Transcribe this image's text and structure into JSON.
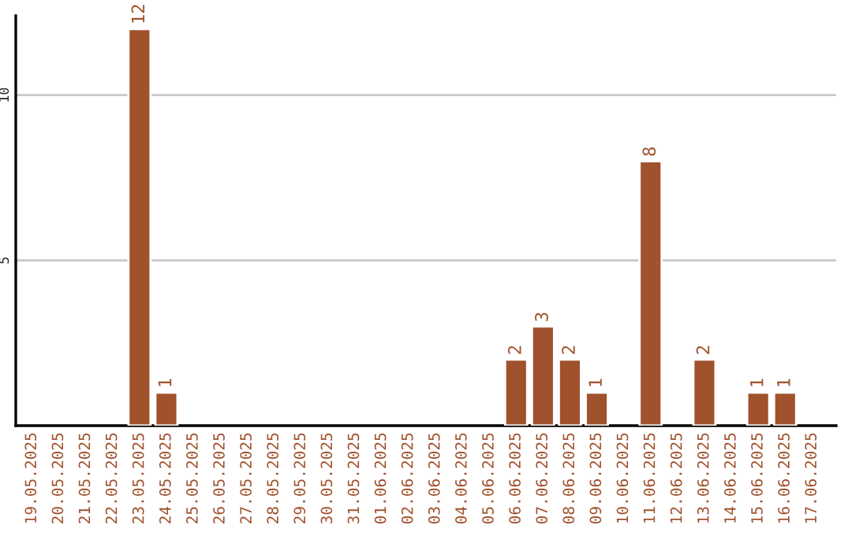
{
  "chart_data": {
    "type": "bar",
    "categories": [
      "19.05.2025",
      "20.05.2025",
      "21.05.2025",
      "22.05.2025",
      "23.05.2025",
      "24.05.2025",
      "25.05.2025",
      "26.05.2025",
      "27.05.2025",
      "28.05.2025",
      "29.05.2025",
      "30.05.2025",
      "31.05.2025",
      "01.06.2025",
      "02.06.2025",
      "03.06.2025",
      "04.06.2025",
      "05.06.2025",
      "06.06.2025",
      "07.06.2025",
      "08.06.2025",
      "09.06.2025",
      "10.06.2025",
      "11.06.2025",
      "12.06.2025",
      "13.06.2025",
      "14.06.2025",
      "15.06.2025",
      "16.06.2025",
      "17.06.2025"
    ],
    "values": [
      null,
      null,
      null,
      null,
      12,
      1,
      null,
      null,
      null,
      null,
      null,
      null,
      null,
      null,
      null,
      null,
      null,
      null,
      2,
      3,
      2,
      1,
      null,
      8,
      null,
      2,
      null,
      1,
      1,
      null
    ],
    "value_labels": [
      null,
      null,
      null,
      null,
      "12",
      "1",
      null,
      null,
      null,
      null,
      null,
      null,
      null,
      null,
      null,
      null,
      null,
      null,
      "2",
      "3",
      "2",
      "1",
      null,
      "8",
      null,
      "2",
      null,
      "1",
      "1",
      null
    ],
    "color": "#a0522d",
    "ylim": [
      0,
      12.4
    ],
    "yticks": [
      5,
      10
    ],
    "grid": "y"
  }
}
